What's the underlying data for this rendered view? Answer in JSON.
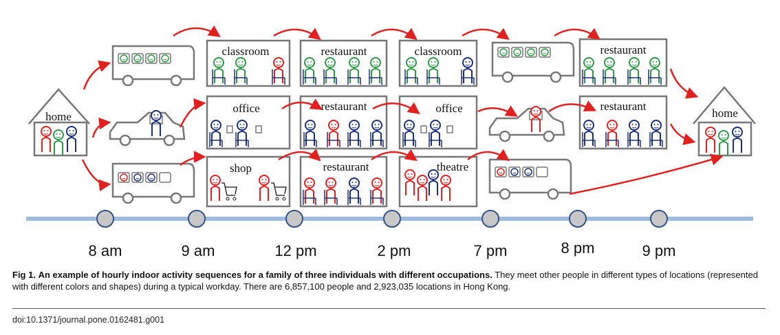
{
  "figure": {
    "home_label_left": "home",
    "home_label_right": "home",
    "time_labels": [
      "8 am",
      "9 am",
      "12 pm",
      "2 pm",
      "7 pm",
      "8 pm",
      "9 pm"
    ],
    "row1": {
      "box1": "classroom",
      "box2": "restaurant",
      "box3": "classroom",
      "box4": "restaurant"
    },
    "row2": {
      "box1": "office",
      "box2": "restaurant",
      "box3": "office",
      "box4": "restaurant"
    },
    "row3": {
      "box1": "shop",
      "box2": "restaurant",
      "box3": "theatre"
    },
    "colors": {
      "red": "#e0211f",
      "green": "#2e9a47",
      "blue": "#1d2f7c",
      "gray": "#777777",
      "timeline": "#9dbce0",
      "node_fill": "#c8c8c8",
      "node_stroke": "#33508a"
    }
  },
  "caption": {
    "label": "Fig 1.",
    "title": "An example of hourly indoor activity sequences for a family of three individuals with different occupations.",
    "text": "They meet other people in different types of locations (represented with different colors and shapes) during a typical workday. There are 6,857,100 people and 2,923,035 locations in Hong Kong."
  },
  "doi": "doi:10.1371/journal.pone.0162481.g001"
}
